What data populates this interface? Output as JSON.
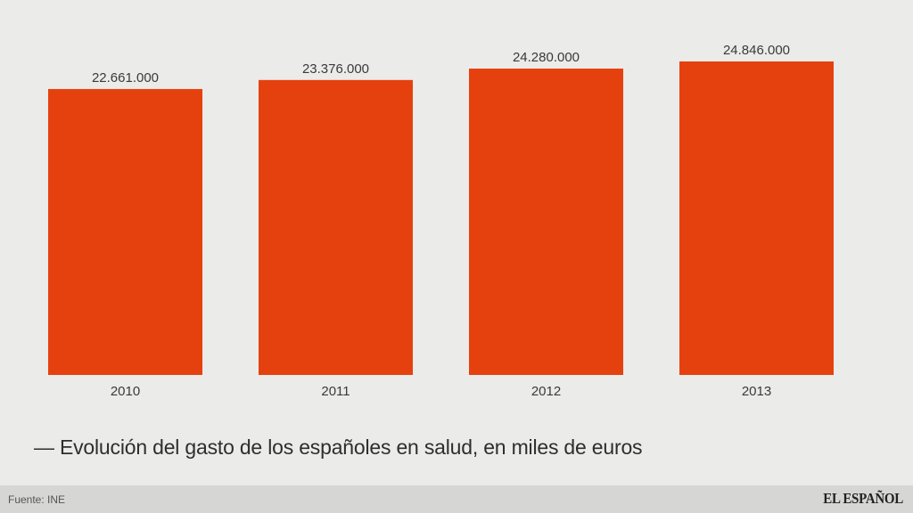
{
  "chart_data": {
    "type": "bar",
    "categories": [
      "2010",
      "2011",
      "2012",
      "2013"
    ],
    "values": [
      22661000,
      23376000,
      24280000,
      24846000
    ],
    "data_labels": [
      "22.661.000",
      "23.376.000",
      "24.280.000",
      "24.846.000"
    ],
    "title": "— Evolución del gasto de los españoles en salud, en miles de euros",
    "xlabel": "",
    "ylabel": "",
    "grid": false,
    "bar_color": "#e5410f"
  },
  "footer": {
    "source": "Fuente: INE",
    "brand": "EL ESPAÑOL"
  }
}
